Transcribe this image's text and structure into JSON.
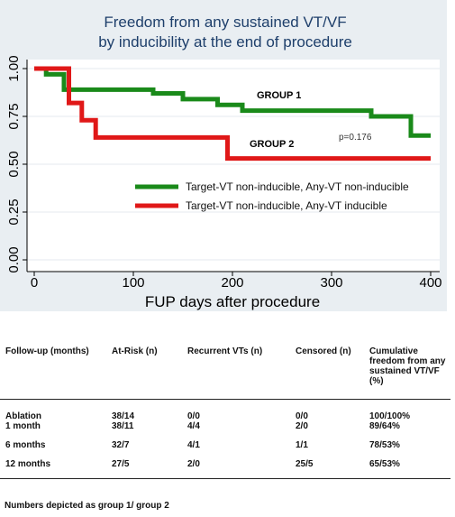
{
  "chart_data": {
    "type": "line",
    "title": "Freedom from any sustained VT/VF",
    "subtitle": "by inducibility at the end of procedure",
    "xlabel": "FUP days after procedure",
    "ylabel": "",
    "xlim": [
      0,
      400
    ],
    "ylim": [
      0,
      1
    ],
    "x_ticks": [
      "0",
      "100",
      "200",
      "300",
      "400"
    ],
    "y_ticks": [
      "0.00",
      "0.25",
      "0.50",
      "0.75",
      "1.00"
    ],
    "grid": true,
    "step": true,
    "legend_position": "center-right",
    "series": [
      {
        "name": "Target-VT non-inducible, Any-VT non-inducible",
        "label": "GROUP 1",
        "color": "#1a8a1a",
        "x": [
          0,
          12,
          30,
          120,
          150,
          185,
          210,
          340,
          380,
          400
        ],
        "y": [
          1.0,
          0.97,
          0.89,
          0.87,
          0.84,
          0.81,
          0.78,
          0.75,
          0.65,
          0.65
        ]
      },
      {
        "name": "Target-VT non-inducible, Any-VT inducible",
        "label": "GROUP 2",
        "color": "#e01818",
        "x": [
          0,
          35,
          48,
          62,
          195,
          400
        ],
        "y": [
          1.0,
          0.82,
          0.73,
          0.64,
          0.53,
          0.53
        ]
      }
    ],
    "annotations": [
      "GROUP 1",
      "GROUP 2",
      "p=0.176"
    ]
  },
  "table": {
    "headers": [
      "Follow-up (months)",
      "At-Risk (n)",
      "Recurrent VTs (n)",
      "Censored (n)",
      "Cumulative freedom from any sustained VT/VF (%)"
    ],
    "rows": [
      [
        "Ablation",
        "38/14",
        "0/0",
        "0/0",
        "100/100%"
      ],
      [
        "1 month",
        "38/11",
        "4/4",
        "2/0",
        "89/64%"
      ],
      [
        "6 months",
        "32/7",
        "4/1",
        "1/1",
        "78/53%"
      ],
      [
        "12 months",
        "27/5",
        "2/0",
        "25/5",
        "65/53%"
      ]
    ],
    "note": "Numbers depicted as group 1/ group 2"
  },
  "colors": {
    "figure_bg": "#e9eef2",
    "plot_bg": "#ffffff",
    "grid": "#e9eef2",
    "title": "#1e3f6b"
  }
}
